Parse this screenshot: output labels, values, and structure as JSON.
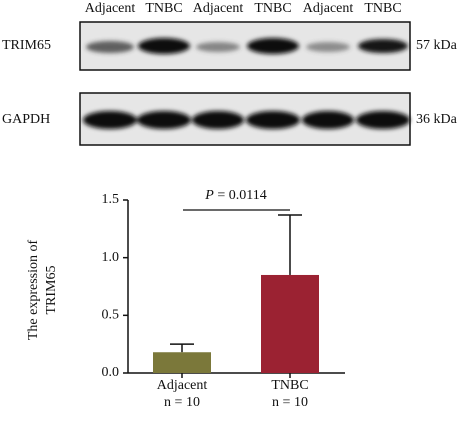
{
  "blot": {
    "lanes": [
      "Adjacent",
      "TNBC",
      "Adjacent",
      "TNBC",
      "Adjacent",
      "TNBC"
    ],
    "rows": [
      {
        "name": "TRIM65",
        "size": "57 kDa"
      },
      {
        "name": "GAPDH",
        "size": "36 kDa"
      }
    ]
  },
  "chart_data": {
    "type": "bar",
    "ylabel": [
      "The expression of",
      "TRIM65"
    ],
    "categories": [
      "Adjacent",
      "TNBC"
    ],
    "sublabels": [
      "n = 10",
      "n = 10"
    ],
    "values": [
      0.18,
      0.85
    ],
    "errors": [
      0.07,
      0.52
    ],
    "colors": [
      "#7b783a",
      "#9b2232"
    ],
    "annotation": {
      "symbol": "P",
      "text": "= 0.0114"
    },
    "ylim": [
      0,
      1.5
    ],
    "yticks": [
      {
        "value": 0,
        "label": "0.0"
      },
      0.5,
      {
        "value": 1,
        "label": "1.0"
      },
      1.5
    ]
  }
}
